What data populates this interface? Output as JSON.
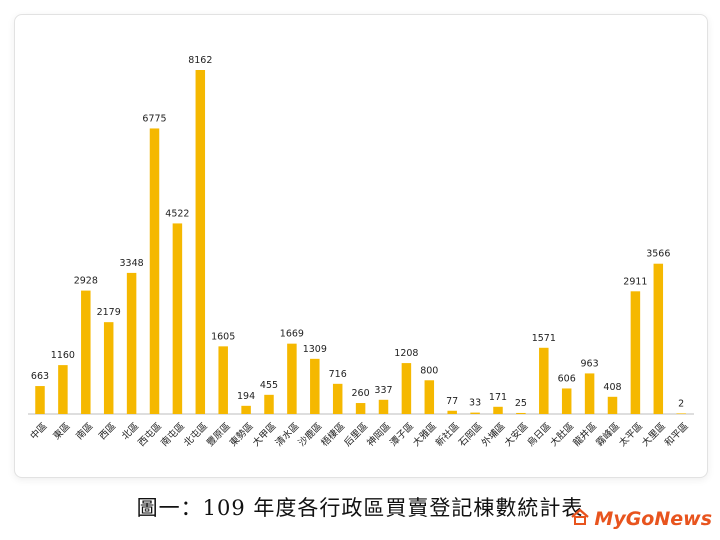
{
  "caption": "圖一：109 年度各行政區買賣登記棟數統計表",
  "logo": {
    "text": "MyGoNews",
    "icon": "house-icon"
  },
  "colors": {
    "bar": "#F5B800",
    "baseline": "#bdbdbd",
    "logo": "#e8541e"
  },
  "chart_data": {
    "type": "bar",
    "title": "",
    "xlabel": "",
    "ylabel": "",
    "grid": false,
    "legend": "none",
    "categories": [
      "中區",
      "東區",
      "南區",
      "西區",
      "北區",
      "西屯區",
      "南屯區",
      "北屯區",
      "豐原區",
      "東勢區",
      "大甲區",
      "清水區",
      "沙鹿區",
      "梧棲區",
      "后里區",
      "神岡區",
      "潭子區",
      "大雅區",
      "新社區",
      "石岡區",
      "外埔區",
      "大安區",
      "烏日區",
      "大肚區",
      "龍井區",
      "霧峰區",
      "太平區",
      "大里區",
      "和平區"
    ],
    "values": [
      663,
      1160,
      2928,
      2179,
      3348,
      6775,
      4522,
      8162,
      1605,
      194,
      455,
      1669,
      1309,
      716,
      260,
      337,
      1208,
      800,
      77,
      33,
      171,
      25,
      1571,
      606,
      963,
      408,
      2911,
      3566,
      2
    ],
    "ylim": [
      0,
      8162
    ]
  }
}
